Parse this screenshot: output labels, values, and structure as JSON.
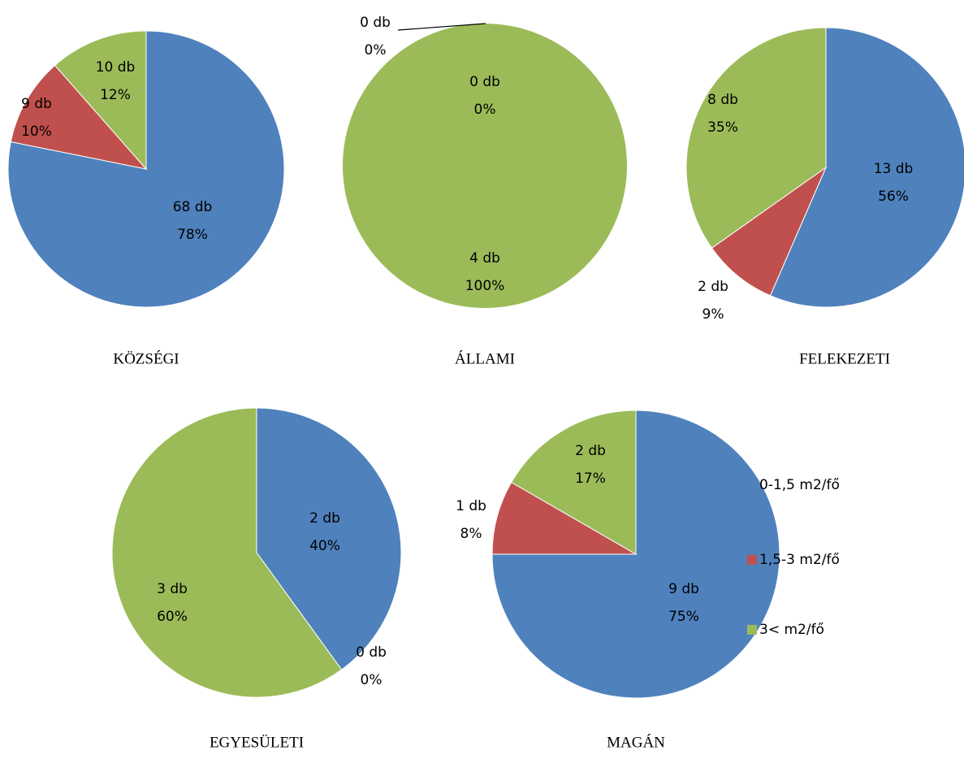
{
  "chart_data": [
    {
      "type": "pie",
      "title": "KÖZSÉGI",
      "values": [
        68,
        9,
        10
      ],
      "value_labels": [
        "68 db",
        "9 db",
        "10 db"
      ],
      "percents": [
        78,
        10,
        12
      ],
      "percent_labels": [
        "78%",
        "10%",
        "12%"
      ]
    },
    {
      "type": "pie",
      "title": "ÁLLAMI",
      "values": [
        0,
        0,
        4
      ],
      "value_labels": [
        "0 db",
        "0 db",
        "4 db"
      ],
      "percents": [
        0,
        0,
        100
      ],
      "percent_labels": [
        "0%",
        "0%",
        "100%"
      ]
    },
    {
      "type": "pie",
      "title": "FELEKEZETI",
      "values": [
        13,
        2,
        8
      ],
      "value_labels": [
        "13 db",
        "2 db",
        "8 db"
      ],
      "percents": [
        56,
        9,
        35
      ],
      "percent_labels": [
        "56%",
        "9%",
        "35%"
      ]
    },
    {
      "type": "pie",
      "title": "EGYESÜLETI",
      "values": [
        2,
        0,
        3
      ],
      "value_labels": [
        "2 db",
        "0 db",
        "3 db"
      ],
      "percents": [
        40,
        0,
        60
      ],
      "percent_labels": [
        "40%",
        "0%",
        "60%"
      ]
    },
    {
      "type": "pie",
      "title": "MAGÁN",
      "values": [
        9,
        1,
        2
      ],
      "value_labels": [
        "9 db",
        "1 db",
        "2 db"
      ],
      "percents": [
        75,
        8,
        17
      ],
      "percent_labels": [
        "75%",
        "8%",
        "17%"
      ]
    }
  ],
  "legend": {
    "labels": [
      "0-1,5 m2/fő",
      "1,5-3 m2/fő",
      "3< m2/fő"
    ],
    "colors": [
      "#4f81bd",
      "#c0504d",
      "#9bbb59"
    ],
    "position": "right"
  }
}
